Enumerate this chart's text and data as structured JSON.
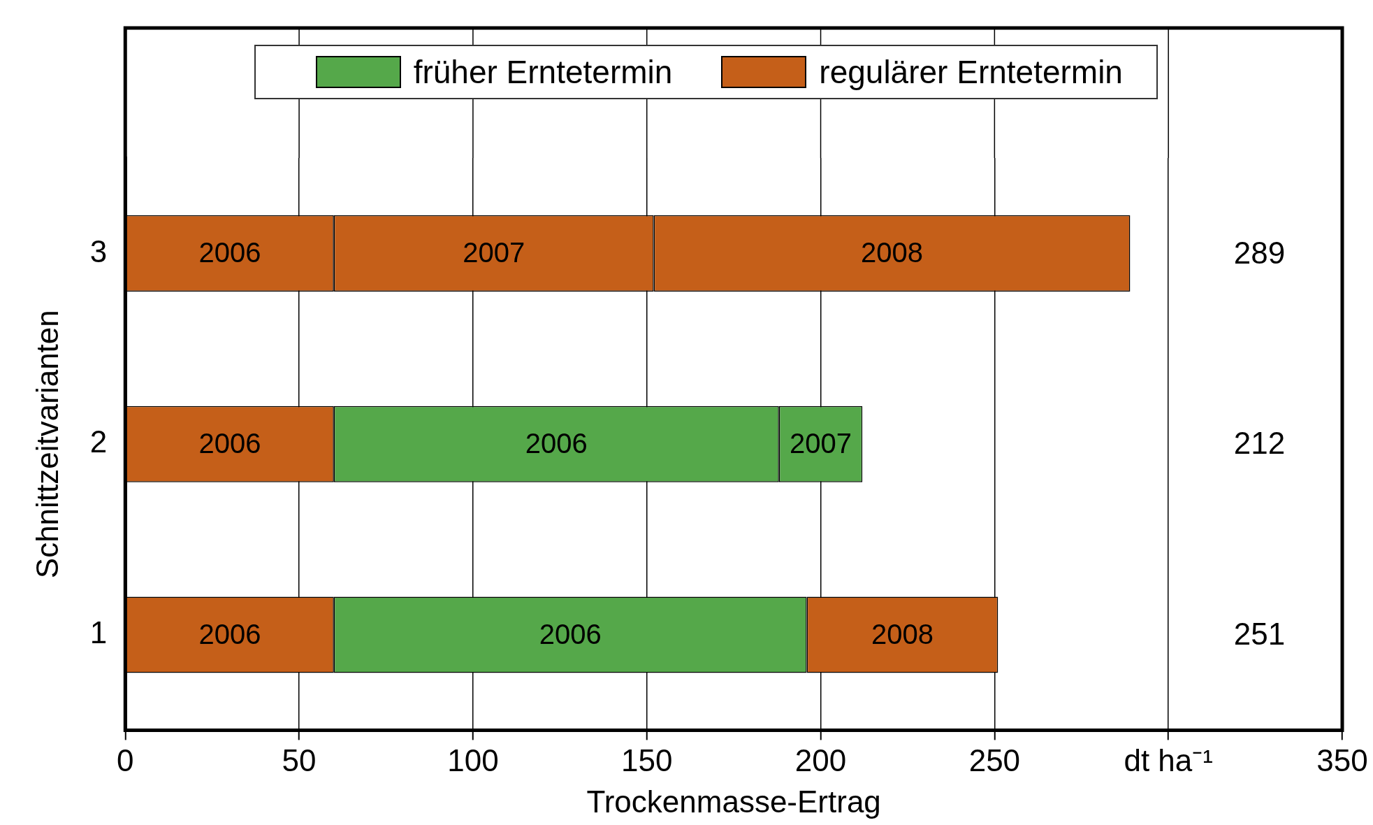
{
  "chart_data": {
    "type": "bar",
    "orientation": "horizontal",
    "stacked": true,
    "xlabel": "Trockenmasse-Ertrag",
    "ylabel": "Schnittzeitvarianten",
    "categories": [
      "3",
      "2",
      "1"
    ],
    "series": [
      {
        "name": "regulärer Erntetermin",
        "color": "#c55f19",
        "values": [
          60,
          60,
          60
        ]
      },
      {
        "name": "früher Erntetermin",
        "color": "#55a84a",
        "values": [
          null,
          128,
          136
        ]
      },
      {
        "color": "#c55f19",
        "values": [
          92,
          null,
          null
        ]
      },
      {
        "color": "#55a84a",
        "values": [
          null,
          24,
          null
        ]
      },
      {
        "color": "#c55f19",
        "values": [
          137,
          null,
          55
        ]
      }
    ],
    "annotations": [
      "2006",
      "2006",
      "2006",
      "2006",
      "2006",
      "2007",
      "2007",
      "2008",
      "2008",
      "289",
      "212",
      "251"
    ],
    "xlim": [
      0,
      350
    ],
    "xticks": [
      0,
      50,
      100,
      150,
      200,
      250,
      {
        "value": 300,
        "label": "dt ha⁻¹"
      },
      350
    ],
    "grid": "x",
    "legend": "top"
  }
}
